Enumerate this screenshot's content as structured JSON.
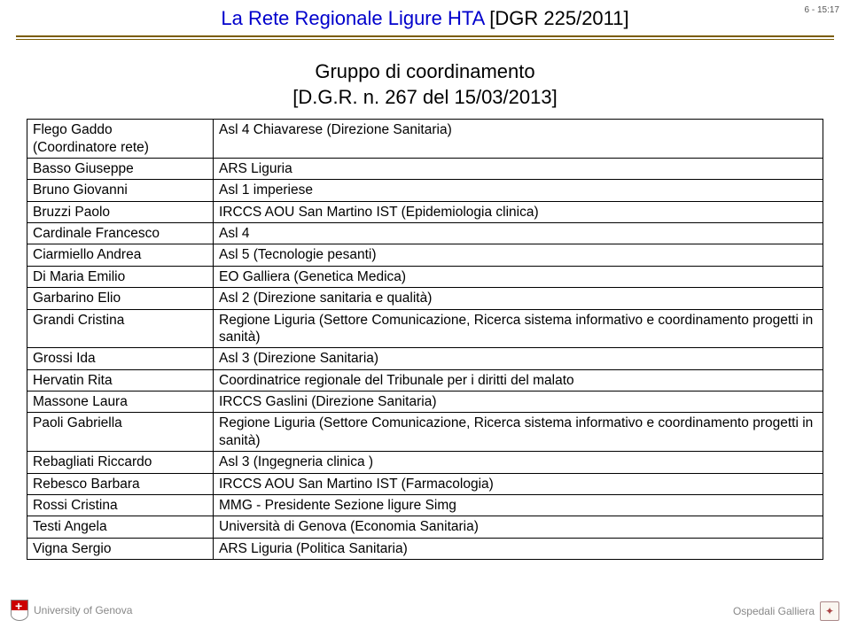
{
  "header": {
    "page_num": "6 - 15:17",
    "title_main": "La Rete Regionale Ligure HTA",
    "title_sub": "[DGR 225/2011]"
  },
  "subtitle": {
    "line1": "Gruppo di coordinamento",
    "line2": "[D.G.R. n. 267 del 15/03/2013]"
  },
  "rows": [
    {
      "name": "Flego Gaddo\n(Coordinatore rete)",
      "org": "Asl 4 Chiavarese (Direzione Sanitaria)"
    },
    {
      "name": "Basso Giuseppe",
      "org": "ARS Liguria"
    },
    {
      "name": "Bruno Giovanni",
      "org": "Asl 1 imperiese"
    },
    {
      "name": "Bruzzi Paolo",
      "org": "IRCCS AOU San Martino IST (Epidemiologia clinica)"
    },
    {
      "name": "Cardinale Francesco",
      "org": "Asl 4"
    },
    {
      "name": "Ciarmiello Andrea",
      "org": "Asl 5 (Tecnologie pesanti)"
    },
    {
      "name": "Di Maria Emilio",
      "org": "EO Galliera (Genetica Medica)"
    },
    {
      "name": "Garbarino Elio",
      "org": "Asl 2 (Direzione sanitaria e qualità)"
    },
    {
      "name": "Grandi Cristina",
      "org": "Regione Liguria (Settore Comunicazione, Ricerca sistema informativo e coordinamento progetti in sanità)"
    },
    {
      "name": "Grossi Ida",
      "org": "Asl 3 (Direzione Sanitaria)"
    },
    {
      "name": "Hervatin Rita",
      "org": "Coordinatrice regionale del Tribunale per i diritti del malato"
    },
    {
      "name": "Massone Laura",
      "org": "IRCCS Gaslini (Direzione Sanitaria)"
    },
    {
      "name": "Paoli Gabriella",
      "org": "Regione Liguria (Settore Comunicazione, Ricerca sistema informativo e coordinamento progetti in sanità)"
    },
    {
      "name": "Rebagliati Riccardo",
      "org": "Asl 3 (Ingegneria clinica )"
    },
    {
      "name": "Rebesco Barbara",
      "org": "IRCCS AOU San Martino IST (Farmacologia)"
    },
    {
      "name": "Rossi Cristina",
      "org": "MMG - Presidente Sezione ligure Simg"
    },
    {
      "name": "Testi Angela",
      "org": "Università di Genova (Economia Sanitaria)"
    },
    {
      "name": "Vigna Sergio",
      "org": "ARS Liguria (Politica Sanitaria)"
    }
  ],
  "footer": {
    "left": "University of Genova",
    "right": "Ospedali Galliera"
  },
  "colors": {
    "title_blue": "#0000cc",
    "divider": "#7a5c00",
    "footer_text": "#888888"
  }
}
